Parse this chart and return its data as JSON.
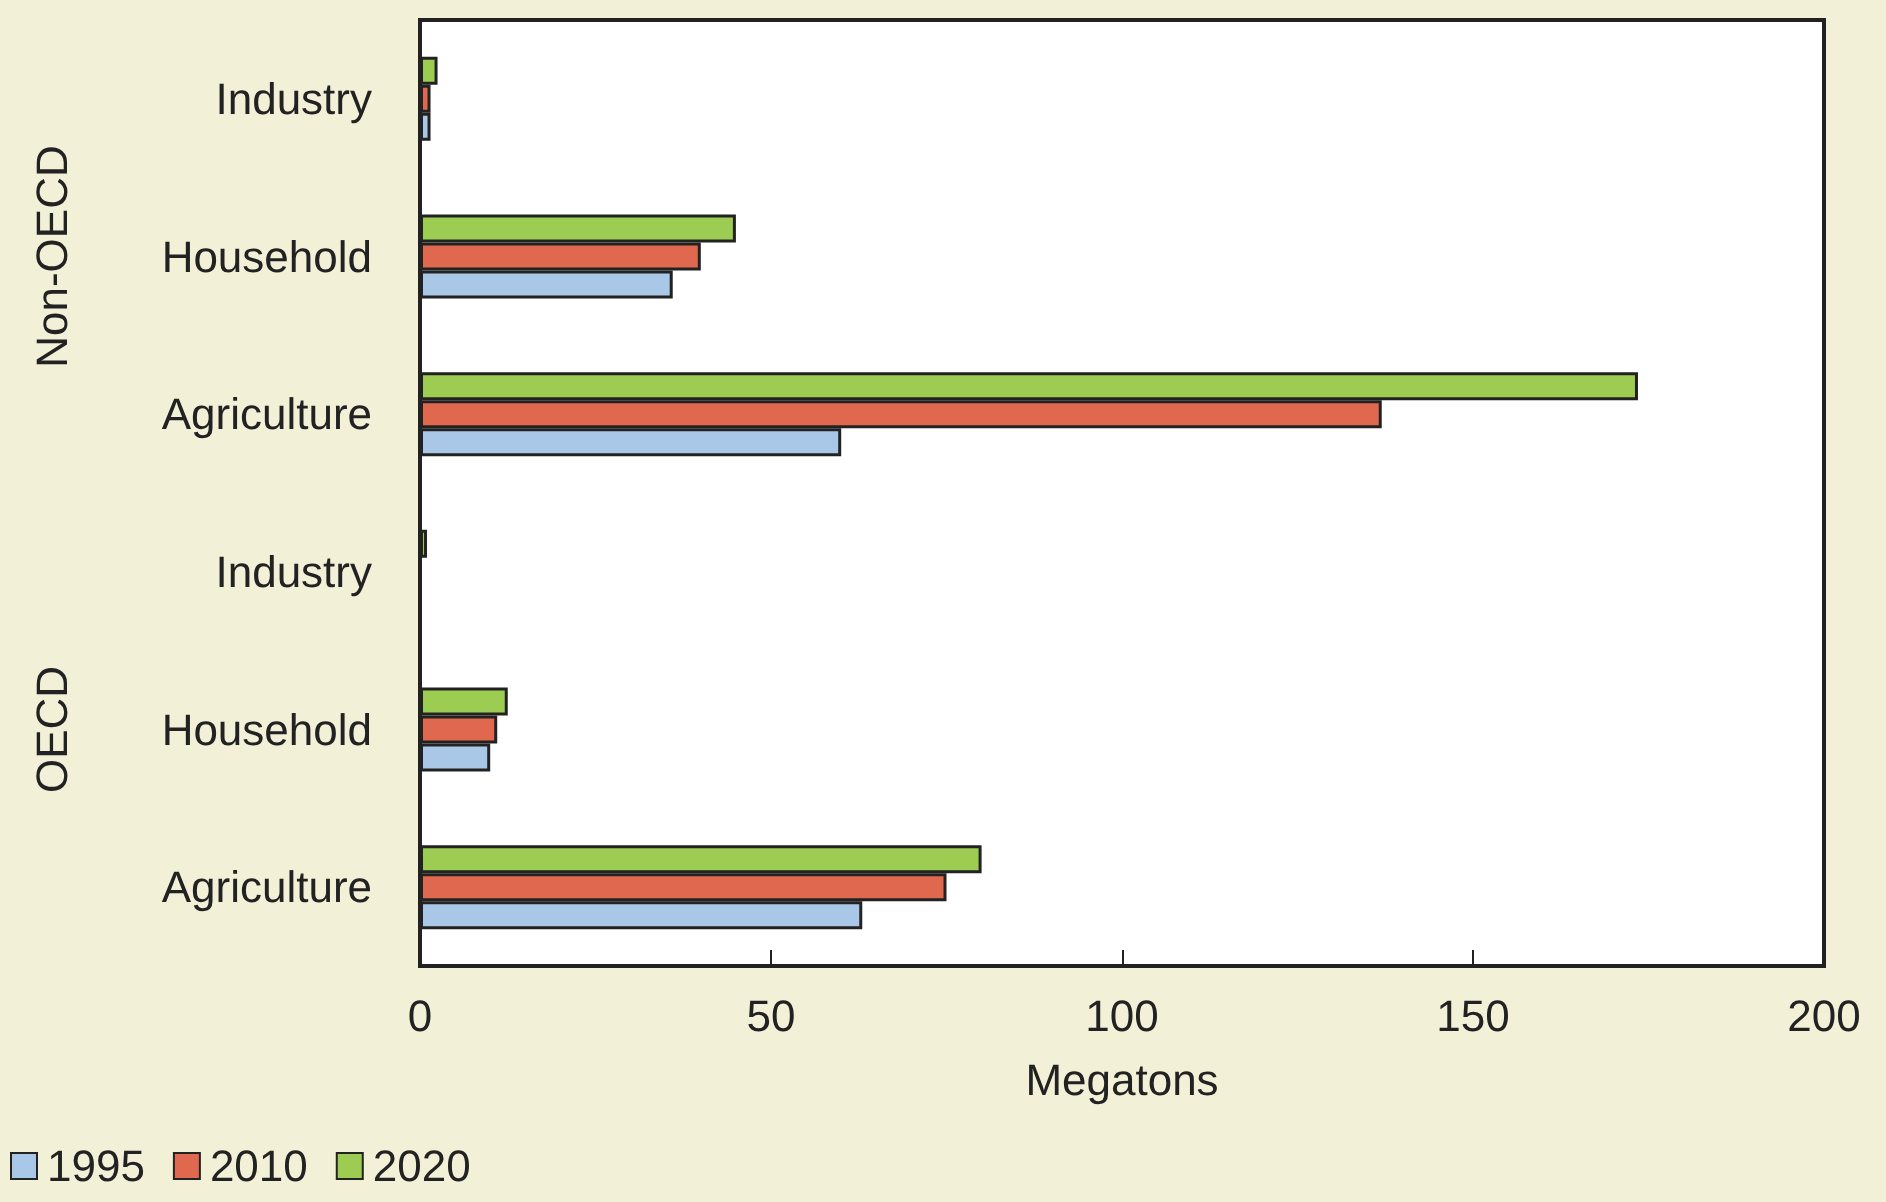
{
  "chart_data": {
    "type": "bar",
    "orientation": "horizontal",
    "xlabel": "Megatons",
    "categories": [
      "Industry",
      "Household",
      "Agriculture",
      "Industry",
      "Household",
      "Agriculture"
    ],
    "series": [
      {
        "name": "1995",
        "color": "#a9c8e8",
        "values": [
          1.5,
          36,
          60,
          null,
          10,
          63
        ]
      },
      {
        "name": "2010",
        "color": "#e0684f",
        "values": [
          1.5,
          40,
          137,
          null,
          11,
          75
        ]
      },
      {
        "name": "2020",
        "color": "#9ccc52",
        "values": [
          2.5,
          45,
          173.5,
          1,
          12.5,
          80
        ]
      }
    ],
    "annotations": [
      "Non-OECD",
      "OECD"
    ],
    "xlim": [
      0,
      200
    ],
    "xticks": [
      0,
      50,
      100,
      150,
      200
    ],
    "grid": false,
    "legend": "bottom left"
  }
}
